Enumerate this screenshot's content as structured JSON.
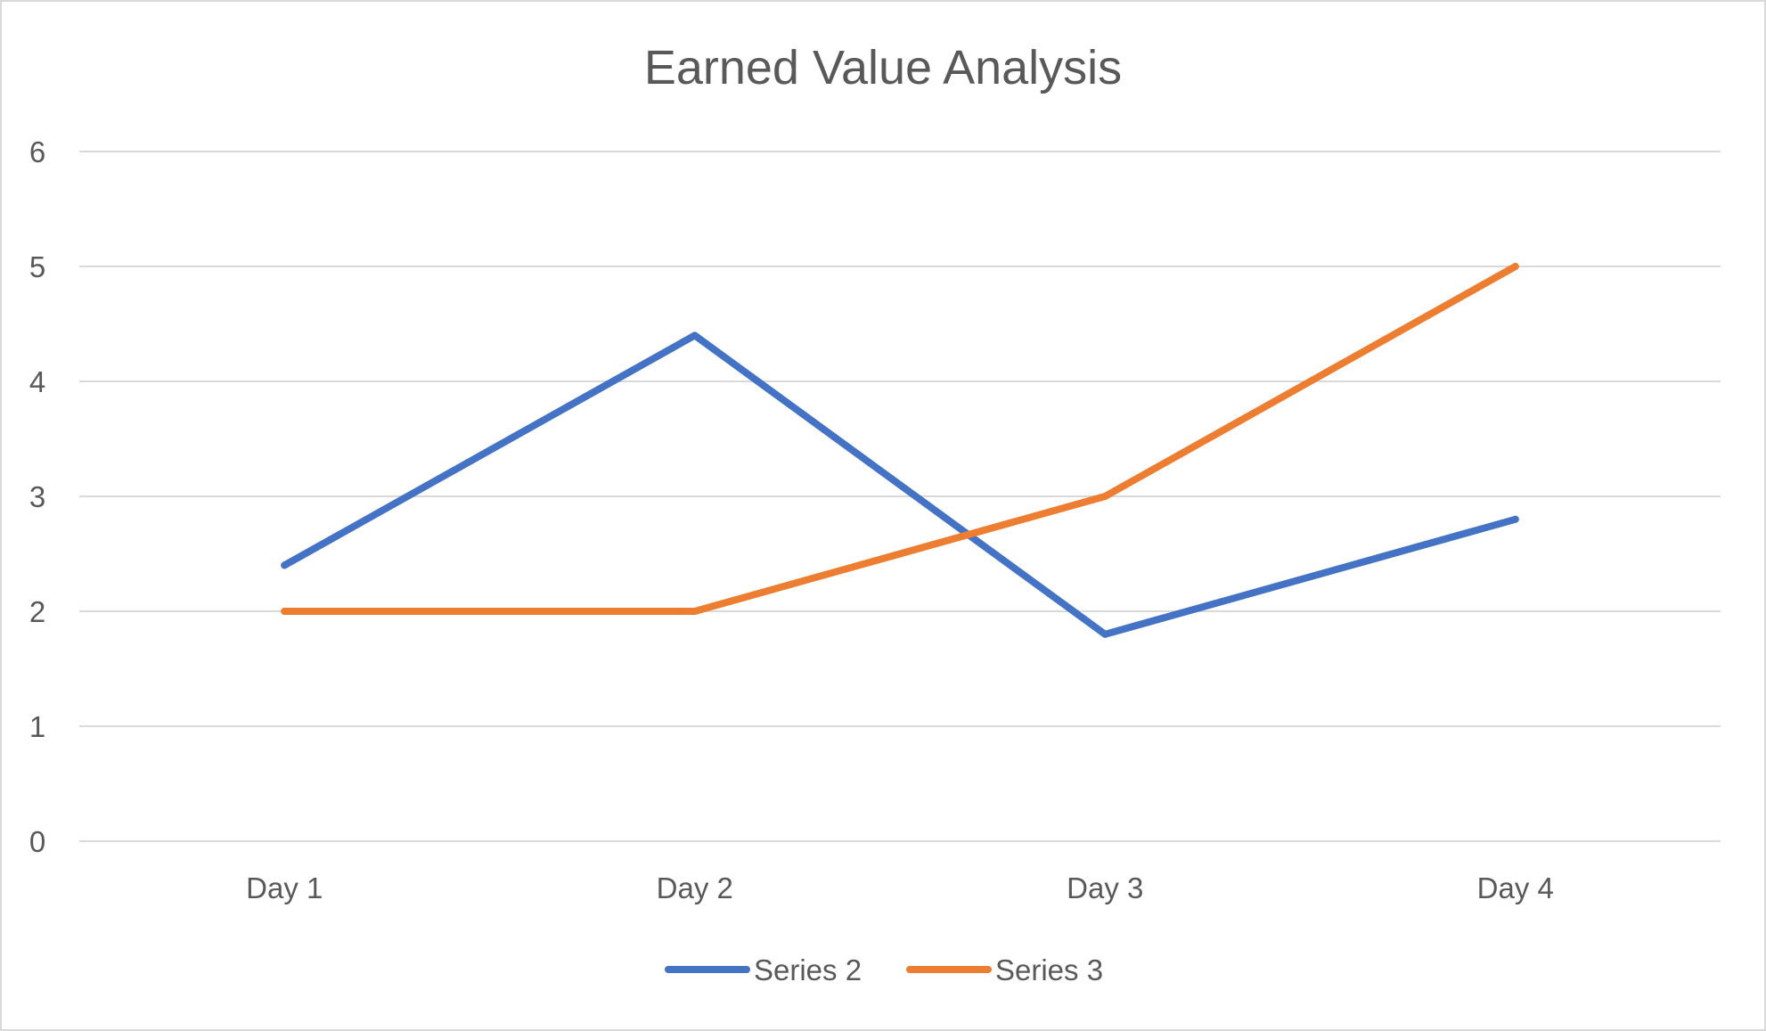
{
  "chart_data": {
    "type": "line",
    "title": "Earned Value Analysis",
    "xlabel": "",
    "ylabel": "",
    "categories": [
      "Day 1",
      "Day 2",
      "Day 3",
      "Day 4"
    ],
    "ylim": [
      0,
      6
    ],
    "yticks": [
      "0",
      "1",
      "2",
      "3",
      "4",
      "5",
      "6"
    ],
    "grid": true,
    "legend_position": "bottom",
    "series": [
      {
        "name": "Series 2",
        "color": "#4472c4",
        "values": [
          2.4,
          4.4,
          1.8,
          2.8
        ]
      },
      {
        "name": "Series 3",
        "color": "#ed7d31",
        "values": [
          2.0,
          2.0,
          3.0,
          5.0
        ]
      }
    ]
  }
}
